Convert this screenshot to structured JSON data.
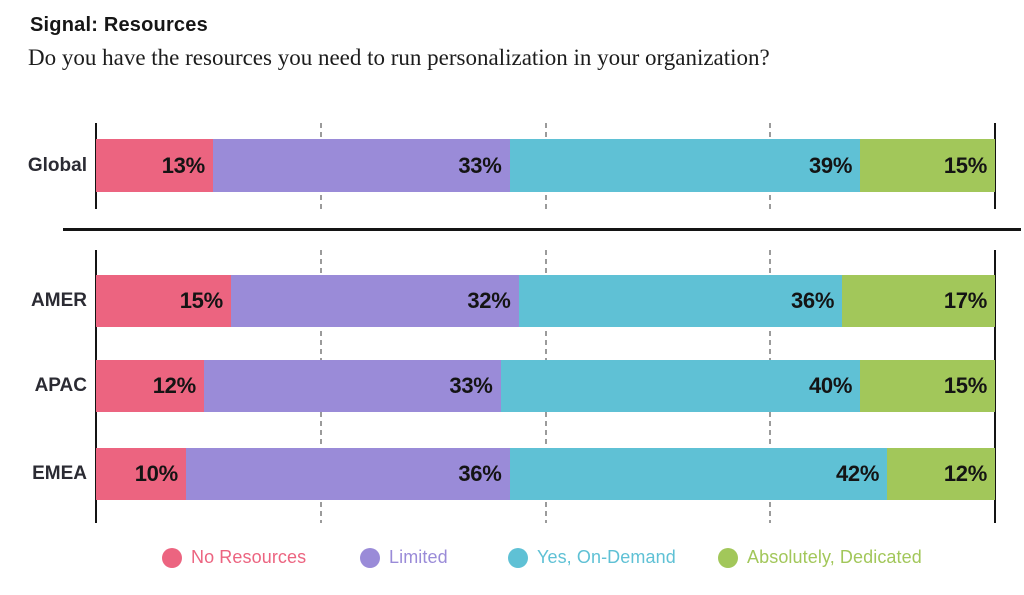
{
  "page": {
    "title": "Signal: Resources",
    "question": "Do you have the resources you need to run personalization in your organization?"
  },
  "chart_data": {
    "type": "bar",
    "variant": "horizontal-stacked-percent",
    "unit": "%",
    "xlim": [
      0,
      100
    ],
    "grid": "dashed-vertical",
    "gridlines_pct": [
      25,
      50,
      75
    ],
    "categories": [
      "No Resources",
      "Limited",
      "Yes, On-Demand",
      "Absolutely, Dedicated"
    ],
    "colors": [
      "#EC6480",
      "#9A8BD8",
      "#5FC1D5",
      "#A2C75A"
    ],
    "groups": [
      {
        "name": "global",
        "rows": [
          {
            "label": "Global",
            "values": [
              13,
              33,
              39,
              15
            ]
          }
        ]
      },
      {
        "name": "regions",
        "rows": [
          {
            "label": "AMER",
            "values": [
              15,
              32,
              36,
              17
            ]
          },
          {
            "label": "APAC",
            "values": [
              12,
              33,
              40,
              15
            ]
          },
          {
            "label": "EMEA",
            "values": [
              10,
              36,
              42,
              12
            ]
          }
        ]
      }
    ],
    "legend": [
      {
        "label": "No Resources",
        "color": "#EC6480"
      },
      {
        "label": "Limited",
        "color": "#9A8BD8"
      },
      {
        "label": "Yes, On-Demand",
        "color": "#5FC1D5"
      },
      {
        "label": "Absolutely, Dedicated",
        "color": "#A2C75A"
      }
    ],
    "legend_position": "bottom"
  }
}
